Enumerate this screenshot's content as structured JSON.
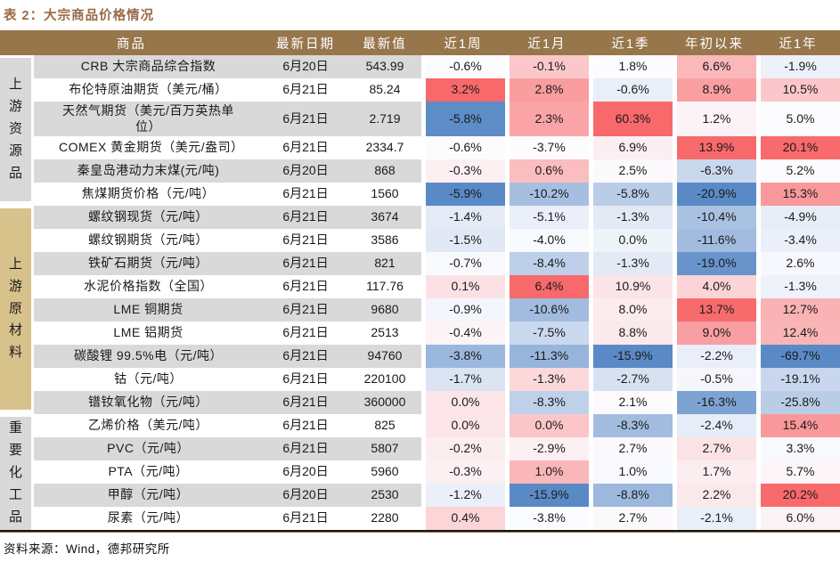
{
  "title": "表 2：大宗商品价格情况",
  "source": "资料来源：Wind，德邦研究所",
  "colors": {
    "title": "#9B6B47",
    "header_bg": "#97764B",
    "stripe": "#D9D9D9",
    "heat_min": "#5A8AC6",
    "heat_mid": "#FCFCFF",
    "heat_max": "#F8696B"
  },
  "table": {
    "columns": [
      "商品",
      "最新日期",
      "最新值",
      "近1周",
      "近1月",
      "近1季",
      "年初以来",
      "近1年"
    ],
    "sections": [
      {
        "label": "上游资源品",
        "label_bg": "#D9D9D9",
        "rows": [
          {
            "name": "CRB 大宗商品综合指数",
            "date": "6月20日",
            "value": "543.99",
            "pct": [
              -0.6,
              -0.1,
              1.8,
              6.6,
              -1.9
            ]
          },
          {
            "name": "布伦特原油期货（美元/桶）",
            "date": "6月21日",
            "value": "85.24",
            "pct": [
              3.2,
              2.8,
              -0.6,
              8.9,
              10.5
            ]
          },
          {
            "name": "天然气期货（美元/百万英热单位）",
            "date": "6月21日",
            "value": "2.719",
            "pct": [
              -5.8,
              2.3,
              60.3,
              1.2,
              5.0
            ]
          },
          {
            "name": "COMEX 黄金期货（美元/盎司）",
            "date": "6月21日",
            "value": "2334.7",
            "pct": [
              -0.6,
              -3.7,
              6.9,
              13.9,
              20.1
            ]
          },
          {
            "name": "秦皇岛港动力末煤(元/吨)",
            "date": "6月20日",
            "value": "868",
            "pct": [
              -0.3,
              0.6,
              2.5,
              -6.3,
              5.2
            ]
          },
          {
            "name": "焦煤期货价格（元/吨）",
            "date": "6月21日",
            "value": "1560",
            "pct": [
              -5.9,
              -10.2,
              -5.8,
              -20.9,
              15.3
            ]
          }
        ]
      },
      {
        "label": "上游原材料",
        "label_bg": "#D8C28C",
        "rows": [
          {
            "name": "螺纹钢现货（元/吨）",
            "date": "6月21日",
            "value": "3674",
            "pct": [
              -1.4,
              -5.1,
              -1.3,
              -10.4,
              -4.9
            ]
          },
          {
            "name": "螺纹钢期货（元/吨）",
            "date": "6月21日",
            "value": "3586",
            "pct": [
              -1.5,
              -4.0,
              0.0,
              -11.6,
              -3.4
            ]
          },
          {
            "name": "铁矿石期货（元/吨）",
            "date": "6月21日",
            "value": "821",
            "pct": [
              -0.7,
              -8.4,
              -1.3,
              -19.0,
              2.6
            ]
          },
          {
            "name": "水泥价格指数（全国）",
            "date": "6月21日",
            "value": "117.76",
            "pct": [
              0.1,
              6.4,
              10.9,
              4.0,
              -1.3
            ]
          },
          {
            "name": "LME 铜期货",
            "date": "6月21日",
            "value": "9680",
            "pct": [
              -0.9,
              -10.6,
              8.0,
              13.7,
              12.7
            ]
          },
          {
            "name": "LME 铝期货",
            "date": "6月21日",
            "value": "2513",
            "pct": [
              -0.4,
              -7.5,
              8.8,
              9.0,
              12.4
            ]
          },
          {
            "name": "碳酸锂 99.5%电（元/吨）",
            "date": "6月21日",
            "value": "94760",
            "pct": [
              -3.8,
              -11.3,
              -15.9,
              -2.2,
              -69.7
            ]
          },
          {
            "name": "钴（元/吨）",
            "date": "6月21日",
            "value": "220100",
            "pct": [
              -1.7,
              -1.3,
              -2.7,
              -0.5,
              -19.1
            ]
          },
          {
            "name": "镨钕氧化物（元/吨）",
            "date": "6月21日",
            "value": "360000",
            "pct": [
              0.0,
              -8.3,
              2.1,
              -16.3,
              -25.8
            ]
          }
        ]
      },
      {
        "label": "重要化工品",
        "label_bg": "#D9D9D9",
        "rows": [
          {
            "name": "乙烯价格（美元/吨）",
            "date": "6月21日",
            "value": "825",
            "pct": [
              0.0,
              0.0,
              -8.3,
              -2.4,
              15.4
            ]
          },
          {
            "name": "PVC（元/吨）",
            "date": "6月21日",
            "value": "5807",
            "pct": [
              -0.2,
              -2.9,
              2.7,
              2.7,
              3.3
            ]
          },
          {
            "name": "PTA（元/吨）",
            "date": "6月20日",
            "value": "5960",
            "pct": [
              -0.3,
              1.0,
              1.0,
              1.7,
              5.7
            ]
          },
          {
            "name": "甲醇（元/吨）",
            "date": "6月20日",
            "value": "2530",
            "pct": [
              -1.2,
              -15.9,
              -8.8,
              2.2,
              20.2
            ]
          },
          {
            "name": "尿素（元/吨）",
            "date": "6月21日",
            "value": "2280",
            "pct": [
              0.4,
              -3.8,
              2.7,
              -2.1,
              6.0
            ]
          }
        ]
      }
    ]
  }
}
